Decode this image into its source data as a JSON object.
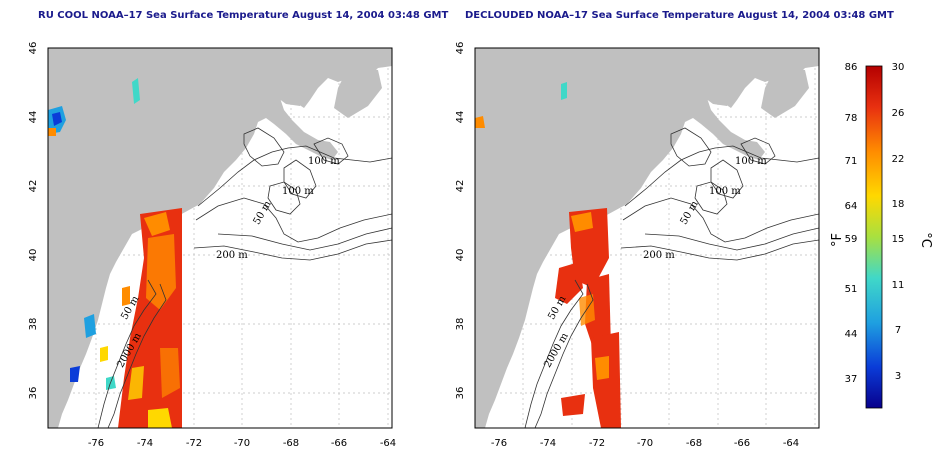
{
  "panels": [
    {
      "id": "left",
      "title": "RU COOL NOAA–17 Sea Surface Temperature August 14, 2004 03:48 GMT"
    },
    {
      "id": "right",
      "title": "DECLOUDED NOAA–17 Sea Surface Temperature August 14, 2004 03:48 GMT"
    }
  ],
  "axes": {
    "lon_ticks": [
      "-76",
      "-74",
      "-72",
      "-70",
      "-68",
      "-66",
      "-64"
    ],
    "lat_ticks": [
      "46",
      "44",
      "42",
      "40",
      "38",
      "36"
    ],
    "lon_range": [
      -77.2,
      -63.0
    ],
    "lat_range": [
      35.0,
      46.0
    ]
  },
  "contour_labels": [
    "100 m",
    "100 m",
    "50 m",
    "200 m",
    "50 m",
    "2000 m"
  ],
  "colorbar": {
    "f_ticks": [
      "86",
      "78",
      "71",
      "64",
      "59",
      "51",
      "44",
      "37"
    ],
    "c_ticks": [
      "30",
      "26",
      "22",
      "18",
      "15",
      "11",
      "7",
      "3"
    ],
    "f_unit": "°F",
    "c_unit": "°C",
    "colors": [
      "#08008c",
      "#0a3cd8",
      "#1fa0e0",
      "#40d8c8",
      "#a8e040",
      "#ffd800",
      "#ff8c00",
      "#e83010",
      "#b40000"
    ]
  }
}
